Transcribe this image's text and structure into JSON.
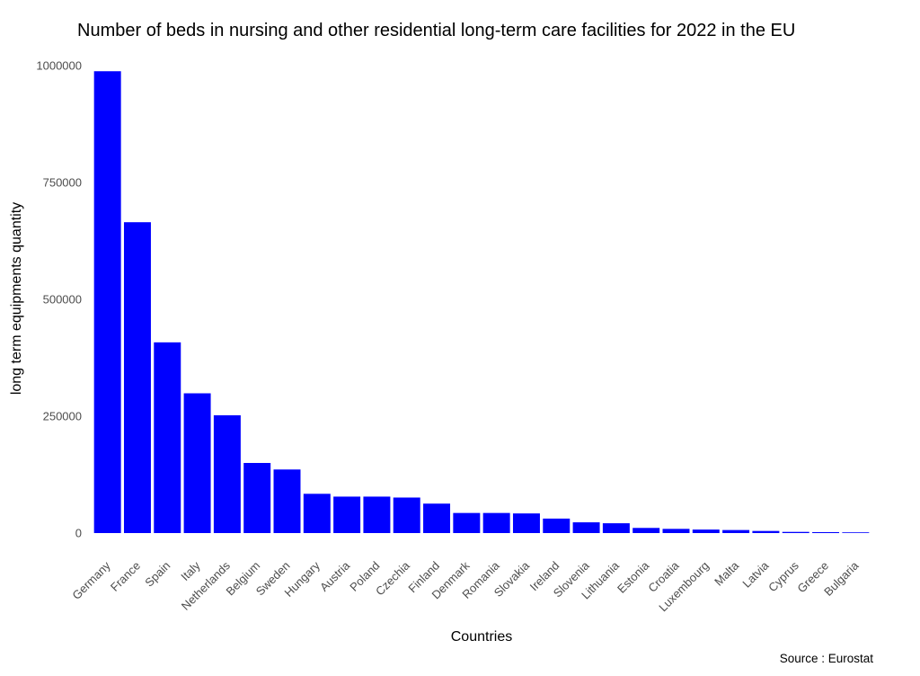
{
  "chart_data": {
    "type": "bar",
    "title": "Number of beds in nursing and other residential long-term care facilities for 2022 in the EU",
    "xlabel": "Countries",
    "ylabel": "long term equipments quantity",
    "caption": "Source : Eurostat",
    "bar_color": "#0000FF",
    "ylim": [
      0,
      1000000
    ],
    "yticks": [
      0,
      250000,
      500000,
      750000,
      1000000
    ],
    "yticks_labels": [
      "0",
      "250000",
      "500000",
      "750000",
      "1000000"
    ],
    "grid": false,
    "categories": [
      "Germany",
      "France",
      "Spain",
      "Italy",
      "Netherlands",
      "Belgium",
      "Sweden",
      "Hungary",
      "Austria",
      "Poland",
      "Czechia",
      "Finland",
      "Denmark",
      "Romania",
      "Slovakia",
      "Ireland",
      "Slovenia",
      "Lithuania",
      "Estonia",
      "Croatia",
      "Luxembourg",
      "Malta",
      "Latvia",
      "Cyprus",
      "Greece",
      "Bulgaria"
    ],
    "values": [
      988000,
      665000,
      408000,
      299000,
      252000,
      150000,
      136000,
      84000,
      78000,
      78000,
      76000,
      63000,
      43000,
      43000,
      42000,
      31000,
      23000,
      21000,
      11000,
      9000,
      7500,
      6500,
      4500,
      2500,
      2000,
      1500
    ]
  }
}
